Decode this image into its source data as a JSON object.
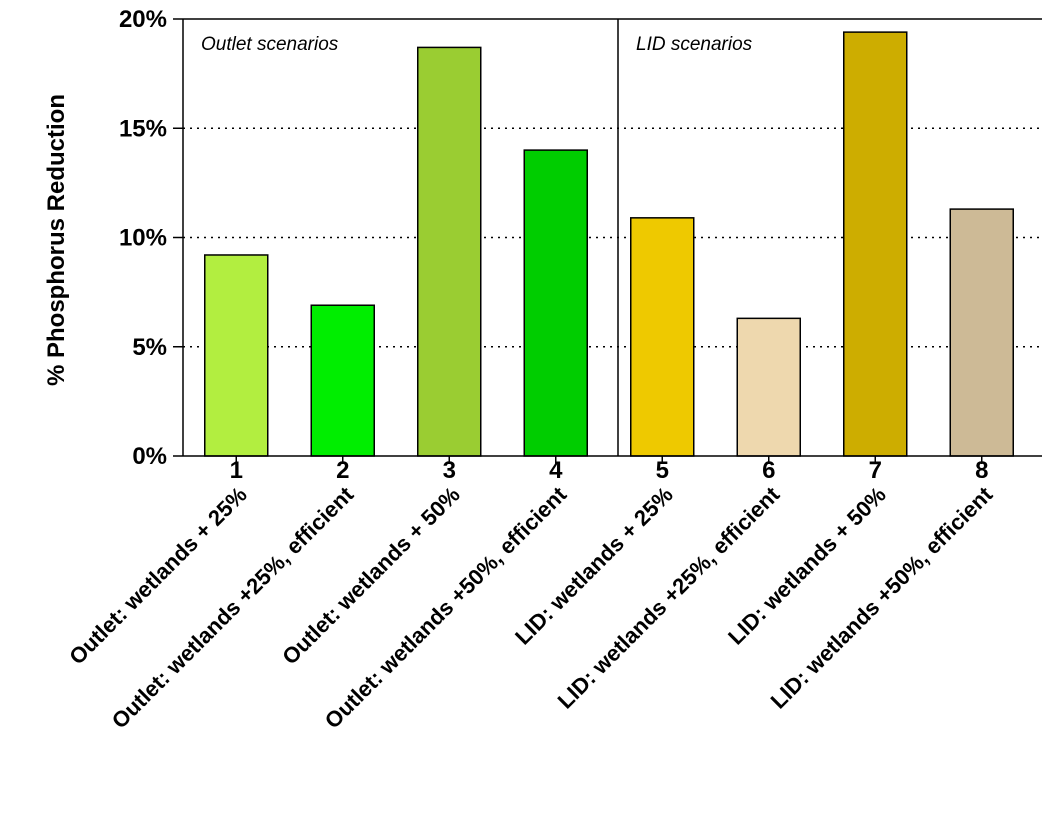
{
  "chart_data": {
    "type": "bar",
    "ylabel": "% Phosphorus Reduction",
    "ylim": [
      0,
      20
    ],
    "y_ticks": [
      {
        "value": 0,
        "label": "0%"
      },
      {
        "value": 5,
        "label": "5%"
      },
      {
        "value": 10,
        "label": "10%"
      },
      {
        "value": 15,
        "label": "15%"
      },
      {
        "value": 20,
        "label": "20%"
      }
    ],
    "gridlines": {
      "style": "dotted",
      "values": [
        5,
        10,
        15
      ]
    },
    "panels": [
      {
        "label": "Outlet scenarios"
      },
      {
        "label": "LID scenarios"
      }
    ],
    "bars": [
      {
        "number": "1",
        "category": "Outlet: wetlands + 25%",
        "value": 9.2,
        "color": "#b2ee40"
      },
      {
        "number": "2",
        "category": "Outlet: wetlands +25%, efficient",
        "value": 6.9,
        "color": "#00ee00"
      },
      {
        "number": "3",
        "category": "Outlet: wetlands + 50%",
        "value": 18.7,
        "color": "#9acd32"
      },
      {
        "number": "4",
        "category": "Outlet: wetlands +50%, efficient",
        "value": 14.0,
        "color": "#00cd00"
      },
      {
        "number": "5",
        "category": "LID: wetlands + 25%",
        "value": 10.9,
        "color": "#eec900"
      },
      {
        "number": "6",
        "category": "LID: wetlands +25%, efficient",
        "value": 6.3,
        "color": "#eed8ae"
      },
      {
        "number": "7",
        "category": "LID: wetlands + 50%",
        "value": 19.4,
        "color": "#cdad00"
      },
      {
        "number": "8",
        "category": "LID: wetlands +50%, efficient",
        "value": 11.3,
        "color": "#cdba96"
      }
    ]
  }
}
